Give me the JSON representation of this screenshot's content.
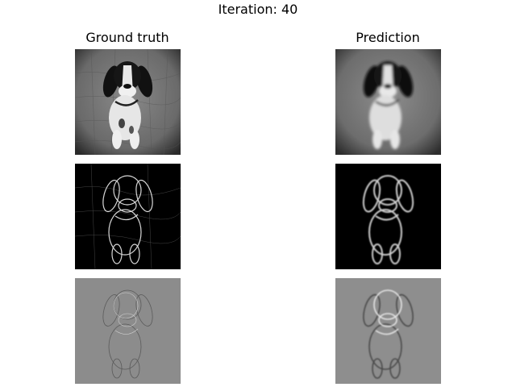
{
  "figure": {
    "title": "Iteration: 40",
    "columns": [
      {
        "label": "Ground truth"
      },
      {
        "label": "Prediction"
      }
    ]
  },
  "colors": {
    "background": "#ffffff",
    "text": "#000000"
  }
}
